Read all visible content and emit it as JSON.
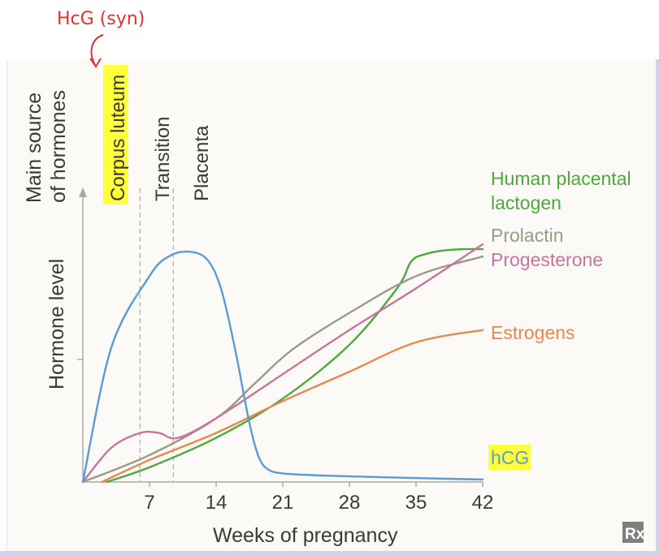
{
  "annotation": {
    "handwritten": "HcG (syn)",
    "color": "#e03030"
  },
  "chart_data": {
    "type": "line",
    "xlabel": "Weeks of pregnancy",
    "ylabel": "Hormone level",
    "y2label": [
      "Main source",
      "of hormones"
    ],
    "xlim": [
      0,
      42
    ],
    "ylim": [
      0,
      100
    ],
    "xticks": [
      "7",
      "14",
      "21",
      "28",
      "35",
      "42"
    ],
    "xtick_values": [
      7,
      14,
      21,
      28,
      35,
      42
    ],
    "ytick_values": [
      50
    ],
    "phases": [
      {
        "label": "Corpus luteum",
        "highlighted": true
      },
      {
        "label": "Transition",
        "highlighted": false
      },
      {
        "label": "Placenta",
        "highlighted": false
      }
    ],
    "phase_boundaries": [
      6,
      9.5
    ],
    "series": [
      {
        "name": "Human placental lactogen",
        "label_lines": [
          "Human placental",
          "lactogen"
        ],
        "color": "#4fa83e",
        "x": [
          2.5,
          7,
          14,
          21,
          28,
          33,
          34.5,
          36,
          38,
          40,
          42
        ],
        "y": [
          0,
          6,
          18,
          34,
          56,
          79,
          90,
          93,
          94.5,
          95,
          95
        ]
      },
      {
        "name": "Prolactin",
        "color": "#9a9a88",
        "x": [
          0,
          7,
          14,
          18,
          22,
          28,
          35,
          42
        ],
        "y": [
          0,
          11,
          26,
          40,
          54,
          69,
          84,
          92
        ]
      },
      {
        "name": "Progesterone",
        "color": "#c9749e",
        "x": [
          0,
          3,
          6,
          8,
          10,
          14,
          21,
          28,
          35,
          42
        ],
        "y": [
          0,
          14,
          20,
          20,
          18,
          26,
          44,
          62,
          79,
          97
        ]
      },
      {
        "name": "Estrogens",
        "color": "#e8884e",
        "x": [
          2,
          7,
          14,
          21,
          28,
          35,
          42
        ],
        "y": [
          0,
          9,
          20,
          33,
          45,
          57,
          62
        ]
      },
      {
        "name": "hCG",
        "color": "#5b9bd5",
        "highlighted": true,
        "x": [
          0,
          3,
          7,
          9,
          11,
          13,
          14.5,
          16,
          17.5,
          18.5,
          19.5,
          21,
          24,
          28,
          35,
          42
        ],
        "y": [
          0,
          55,
          84,
          92,
          94,
          91,
          79,
          54,
          24,
          10,
          5,
          3.5,
          2.8,
          2.3,
          1.6,
          1
        ]
      }
    ]
  },
  "watermark": "Rx"
}
